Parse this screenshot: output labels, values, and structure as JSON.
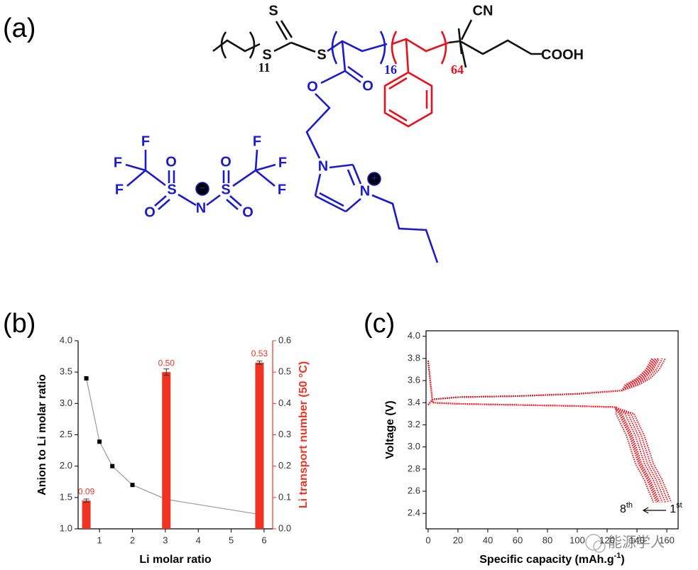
{
  "panel_labels": [
    "(a)",
    "(b)",
    "(c)"
  ],
  "structure": {
    "labels": [
      "S",
      "S",
      "11",
      "S",
      "CN",
      "COOH",
      "O",
      "O",
      "16",
      "64",
      "N",
      "N",
      "+",
      "F",
      "F",
      "F",
      "S",
      "O",
      "O",
      "N",
      "−",
      "S",
      "O",
      "O",
      "F",
      "F",
      "F"
    ]
  },
  "watermark": "能源学人",
  "chart_data": [
    {
      "type": "combo",
      "xlabel": "Li molar ratio",
      "ylabel": "Anion to Li molar ratio",
      "y2label": "Li transport number (50 °C)",
      "xlim": [
        0.35,
        6.26
      ],
      "xticks": [
        1,
        2,
        3,
        4,
        5,
        6
      ],
      "ylim": [
        1,
        4
      ],
      "yticks": [
        {
          "value": 1,
          "label": "1.0"
        },
        1.5,
        {
          "value": 2,
          "label": "2.0"
        },
        2.5,
        {
          "value": 3,
          "label": "3.0"
        },
        3.5,
        {
          "value": 4,
          "label": "4.0"
        }
      ],
      "y2lim": [
        0,
        0.6
      ],
      "y2ticks": [
        {
          "value": 0,
          "label": "0.0"
        },
        0.1,
        0.2,
        0.3,
        0.4,
        0.5,
        0.6
      ],
      "y2color": "#ee3322",
      "series": [
        {
          "type": "line",
          "color": "#999999",
          "marker_color": "#000000",
          "x": [
            0.6,
            1,
            1.39,
            2,
            3.03,
            5.86
          ],
          "values": [
            3.4,
            2.39,
            2.0,
            1.7,
            1.47,
            1.23
          ]
        },
        {
          "type": "bar",
          "axis": "y2",
          "color": "#ee3322",
          "x": [
            0.6,
            3.03,
            5.86
          ],
          "values": [
            0.09,
            0.5,
            0.53
          ],
          "value_labels": [
            "0.09",
            "0.50",
            "0.53"
          ],
          "errors": [
            0.005,
            0.01,
            0.005
          ]
        }
      ]
    },
    {
      "type": "line",
      "xlabel": [
        "Specific capacity (mAh.g",
        "-1",
        ")"
      ],
      "ylabel": "Voltage (V)",
      "xlim": [
        -1.4,
        167.6
      ],
      "xticks": [
        0,
        20,
        40,
        60,
        80,
        100,
        120,
        140,
        160
      ],
      "ylim": [
        2.26,
        4.05
      ],
      "yticks": [
        2.4,
        2.6,
        2.8,
        {
          "value": 3,
          "label": "3.0"
        },
        3.2,
        3.4,
        3.6,
        3.8,
        {
          "value": 4,
          "label": "4.0"
        }
      ],
      "color": "#e8202a",
      "series": [
        {
          "x": [
            0,
            3,
            20,
            60,
            100,
            130,
            141,
            149,
            155,
            159
          ],
          "values": [
            3.38,
            3.43,
            3.45,
            3.46,
            3.48,
            3.51,
            3.56,
            3.62,
            3.7,
            3.8
          ]
        },
        {
          "x": [
            0,
            3,
            20,
            60,
            100,
            130,
            139,
            147,
            153,
            157
          ],
          "values": [
            3.38,
            3.43,
            3.45,
            3.46,
            3.48,
            3.51,
            3.56,
            3.62,
            3.7,
            3.8
          ]
        },
        {
          "x": [
            0,
            3,
            20,
            60,
            100,
            130,
            137,
            145,
            151,
            155
          ],
          "values": [
            3.38,
            3.43,
            3.45,
            3.46,
            3.48,
            3.51,
            3.56,
            3.62,
            3.7,
            3.8
          ]
        },
        {
          "x": [
            0,
            3,
            20,
            60,
            100,
            130,
            136,
            144,
            150,
            154
          ],
          "values": [
            3.38,
            3.43,
            3.45,
            3.46,
            3.48,
            3.51,
            3.56,
            3.62,
            3.7,
            3.8
          ]
        },
        {
          "x": [
            0,
            3,
            20,
            60,
            100,
            130,
            135,
            143,
            149,
            153
          ],
          "values": [
            3.38,
            3.43,
            3.45,
            3.46,
            3.48,
            3.51,
            3.56,
            3.62,
            3.7,
            3.8
          ]
        },
        {
          "x": [
            0,
            3,
            20,
            60,
            100,
            130,
            134,
            142,
            148,
            152
          ],
          "values": [
            3.38,
            3.43,
            3.45,
            3.46,
            3.48,
            3.51,
            3.56,
            3.62,
            3.7,
            3.8
          ]
        },
        {
          "x": [
            0,
            3,
            20,
            60,
            100,
            130,
            133,
            141,
            147,
            151
          ],
          "values": [
            3.38,
            3.43,
            3.45,
            3.46,
            3.48,
            3.51,
            3.56,
            3.62,
            3.7,
            3.8
          ]
        },
        {
          "x": [
            0,
            3,
            20,
            60,
            100,
            130,
            132,
            140,
            146,
            150
          ],
          "values": [
            3.38,
            3.43,
            3.45,
            3.46,
            3.48,
            3.51,
            3.56,
            3.62,
            3.7,
            3.8
          ]
        },
        {
          "x": [
            0,
            3,
            20,
            60,
            100,
            125,
            138,
            145,
            151,
            157,
            163
          ],
          "values": [
            3.78,
            3.4,
            3.39,
            3.38,
            3.37,
            3.36,
            3.3,
            3.1,
            2.85,
            2.7,
            2.5
          ]
        },
        {
          "x": [
            0,
            3,
            20,
            60,
            100,
            125,
            136,
            143,
            149,
            155,
            161
          ],
          "values": [
            3.78,
            3.4,
            3.39,
            3.38,
            3.37,
            3.36,
            3.3,
            3.1,
            2.85,
            2.7,
            2.5
          ]
        },
        {
          "x": [
            0,
            3,
            20,
            60,
            100,
            125,
            134,
            141,
            147,
            153,
            159
          ],
          "values": [
            3.78,
            3.4,
            3.39,
            3.38,
            3.37,
            3.36,
            3.3,
            3.1,
            2.85,
            2.7,
            2.5
          ]
        },
        {
          "x": [
            0,
            3,
            20,
            60,
            100,
            125,
            132,
            139,
            145,
            151,
            157
          ],
          "values": [
            3.78,
            3.4,
            3.39,
            3.38,
            3.37,
            3.36,
            3.3,
            3.1,
            2.85,
            2.7,
            2.5
          ]
        },
        {
          "x": [
            0,
            3,
            20,
            60,
            100,
            125,
            130,
            137,
            143,
            149,
            155
          ],
          "values": [
            3.78,
            3.4,
            3.39,
            3.38,
            3.37,
            3.36,
            3.3,
            3.1,
            2.85,
            2.7,
            2.5
          ]
        },
        {
          "x": [
            0,
            3,
            20,
            60,
            100,
            125,
            129,
            136,
            142,
            148,
            154
          ],
          "values": [
            3.78,
            3.4,
            3.39,
            3.38,
            3.37,
            3.36,
            3.3,
            3.1,
            2.85,
            2.7,
            2.5
          ]
        },
        {
          "x": [
            0,
            3,
            20,
            60,
            100,
            125,
            128,
            135,
            141,
            147,
            153
          ],
          "values": [
            3.78,
            3.4,
            3.39,
            3.38,
            3.37,
            3.36,
            3.3,
            3.1,
            2.85,
            2.7,
            2.5
          ]
        },
        {
          "x": [
            0,
            3,
            20,
            60,
            100,
            126,
            126,
            133,
            139,
            145,
            151
          ],
          "values": [
            3.78,
            3.4,
            3.39,
            3.38,
            3.37,
            3.36,
            3.3,
            3.1,
            2.85,
            2.7,
            2.5
          ]
        }
      ],
      "annotations": [
        {
          "text": "8",
          "sup": "th"
        },
        {
          "text": "1",
          "sup": "st"
        }
      ]
    }
  ]
}
